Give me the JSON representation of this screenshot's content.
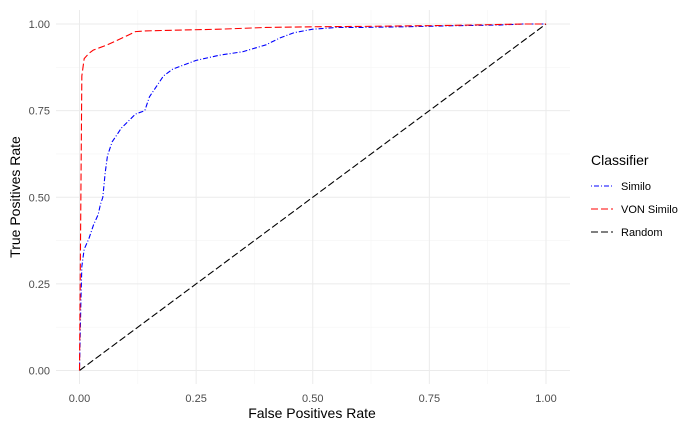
{
  "chart_data": {
    "type": "line",
    "title": "",
    "xlabel": "False Positives Rate",
    "ylabel": "True Positives Rate",
    "xlim": [
      0,
      1
    ],
    "ylim": [
      0,
      1
    ],
    "xticks": [
      "0.00",
      "0.25",
      "0.50",
      "0.75",
      "1.00"
    ],
    "yticks": [
      "0.00",
      "0.25",
      "0.50",
      "0.75",
      "1.00"
    ],
    "grid": true,
    "legend": {
      "title": "Classifier",
      "position": "right"
    },
    "series": [
      {
        "name": "Similo",
        "color": "#0000ff",
        "linestyle": "dotdash",
        "x": [
          0,
          0.003,
          0.005,
          0.01,
          0.02,
          0.03,
          0.04,
          0.045,
          0.05,
          0.055,
          0.06,
          0.07,
          0.09,
          0.12,
          0.14,
          0.15,
          0.16,
          0.18,
          0.2,
          0.25,
          0.3,
          0.35,
          0.4,
          0.43,
          0.46,
          0.5,
          0.55,
          0.6,
          0.7,
          0.8,
          0.9,
          0.95,
          1.0
        ],
        "y": [
          0,
          0.2,
          0.3,
          0.35,
          0.38,
          0.42,
          0.45,
          0.48,
          0.5,
          0.57,
          0.62,
          0.66,
          0.7,
          0.74,
          0.75,
          0.79,
          0.81,
          0.85,
          0.87,
          0.895,
          0.91,
          0.92,
          0.94,
          0.96,
          0.975,
          0.985,
          0.99,
          0.99,
          0.992,
          0.995,
          0.997,
          1.0,
          1.0
        ]
      },
      {
        "name": "VON Similo",
        "color": "#ff0000",
        "linestyle": "dashed",
        "x": [
          0,
          0.005,
          0.01,
          0.02,
          0.03,
          0.06,
          0.1,
          0.12,
          0.14,
          0.2,
          0.3,
          0.4,
          0.5,
          0.6,
          0.8,
          0.95,
          1.0
        ],
        "y": [
          0,
          0.85,
          0.9,
          0.915,
          0.925,
          0.94,
          0.965,
          0.978,
          0.98,
          0.982,
          0.985,
          0.99,
          0.992,
          0.993,
          0.996,
          1.0,
          1.0
        ]
      },
      {
        "name": "Random",
        "color": "#000000",
        "linestyle": "dashed",
        "x": [
          0,
          1
        ],
        "y": [
          0,
          1
        ]
      }
    ]
  }
}
